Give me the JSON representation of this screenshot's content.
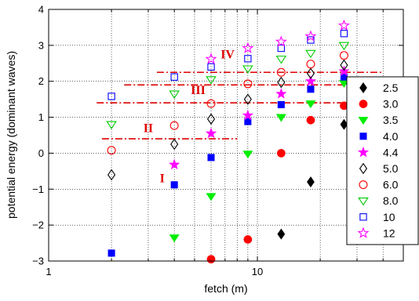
{
  "chart_data": {
    "type": "scatter",
    "xlabel": "fetch (m)",
    "ylabel": "potential energy (dominant waves)",
    "xscale": "log",
    "xlim": [
      1,
      50
    ],
    "ylim": [
      -3,
      4
    ],
    "xticks": [
      {
        "value": 1,
        "label": "1"
      },
      {
        "value": 10,
        "label": "10"
      }
    ],
    "xminor": [
      2,
      3,
      4,
      5,
      6,
      7,
      8,
      9,
      20,
      30,
      40
    ],
    "yticks": [
      {
        "value": -3,
        "label": "−3"
      },
      {
        "value": -2,
        "label": "−2"
      },
      {
        "value": -1,
        "label": "−1"
      },
      {
        "value": 0,
        "label": "0"
      },
      {
        "value": 1,
        "label": "1"
      },
      {
        "value": 2,
        "label": "2"
      },
      {
        "value": 3,
        "label": "3"
      },
      {
        "value": 4,
        "label": "4"
      }
    ],
    "grid": true,
    "legend_position": "right",
    "series": [
      {
        "name": "2.5",
        "marker": "diamond",
        "filled": true,
        "color": "#000000",
        "x": [
          13,
          18,
          26
        ],
        "y": [
          -2.25,
          -0.8,
          0.8
        ]
      },
      {
        "name": "3.0",
        "marker": "circle",
        "filled": true,
        "color": "#ff0000",
        "x": [
          6,
          9,
          13,
          18,
          26
        ],
        "y": [
          -2.95,
          -2.4,
          0.0,
          0.92,
          1.32
        ]
      },
      {
        "name": "3.5",
        "marker": "triangle-down",
        "filled": true,
        "color": "#00ee00",
        "x": [
          4,
          6,
          9,
          13,
          18,
          26
        ],
        "y": [
          -2.35,
          -1.2,
          -0.02,
          1.0,
          1.38,
          1.95
        ]
      },
      {
        "name": "4.0",
        "marker": "square",
        "filled": true,
        "color": "#0000ff",
        "x": [
          2,
          4,
          6,
          9,
          13,
          18,
          26
        ],
        "y": [
          -2.78,
          -0.88,
          -0.12,
          0.88,
          1.35,
          1.78,
          2.12
        ]
      },
      {
        "name": "4.4",
        "marker": "star",
        "filled": true,
        "color": "#ff00ff",
        "x": [
          4,
          6,
          9,
          13,
          18,
          26
        ],
        "y": [
          -0.32,
          0.55,
          1.05,
          1.65,
          2.0,
          2.28
        ]
      },
      {
        "name": "5.0",
        "marker": "diamond",
        "filled": false,
        "color": "#000000",
        "x": [
          2,
          4,
          6,
          9,
          13,
          18,
          26
        ],
        "y": [
          -0.6,
          0.25,
          0.95,
          1.5,
          1.97,
          2.22,
          2.45
        ]
      },
      {
        "name": "6.0",
        "marker": "circle",
        "filled": false,
        "color": "#ff0000",
        "x": [
          2,
          4,
          6,
          9,
          13,
          18,
          26
        ],
        "y": [
          0.08,
          0.77,
          1.38,
          1.93,
          2.25,
          2.48,
          2.72
        ]
      },
      {
        "name": "8.0",
        "marker": "triangle-down",
        "filled": false,
        "color": "#00cc00",
        "x": [
          2,
          4,
          6,
          9,
          13,
          18,
          26
        ],
        "y": [
          0.8,
          1.65,
          2.05,
          2.35,
          2.62,
          2.78,
          3.0
        ]
      },
      {
        "name": "10",
        "marker": "square",
        "filled": false,
        "color": "#0000ff",
        "x": [
          2,
          4,
          6,
          9,
          13,
          18,
          26
        ],
        "y": [
          1.58,
          2.12,
          2.4,
          2.63,
          2.92,
          3.15,
          3.33
        ]
      },
      {
        "name": "12",
        "marker": "star",
        "filled": false,
        "color": "#ff00ff",
        "x": [
          6,
          9,
          13,
          18,
          26
        ],
        "y": [
          2.62,
          2.92,
          3.1,
          3.25,
          3.55
        ]
      }
    ],
    "annotations": [
      {
        "text": "I",
        "x": 3.5,
        "y": -0.7,
        "color": "#dd0000"
      },
      {
        "text": "II",
        "x": 3.0,
        "y": 0.7,
        "color": "#dd0000"
      },
      {
        "text": "III",
        "x": 5.2,
        "y": 1.75,
        "color": "#dd0000"
      },
      {
        "text": "IV",
        "x": 7.2,
        "y": 2.75,
        "color": "#dd0000"
      }
    ],
    "threshold_lines": [
      {
        "y": 0.4,
        "x0": 1.8,
        "x1": 8.0,
        "color": "#dd0000"
      },
      {
        "y": 1.4,
        "x0": 1.7,
        "x1": 40,
        "color": "#dd0000"
      },
      {
        "y": 1.9,
        "x0": 2.3,
        "x1": 40,
        "color": "#dd0000"
      },
      {
        "y": 2.25,
        "x0": 3.3,
        "x1": 40,
        "color": "#dd0000"
      }
    ]
  }
}
